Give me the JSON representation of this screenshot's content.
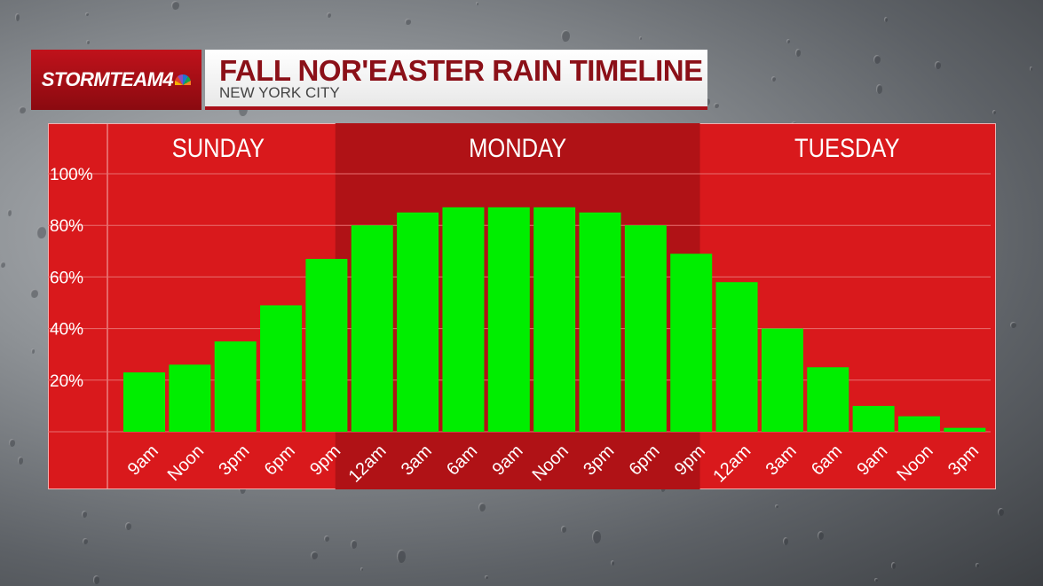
{
  "header": {
    "logo_text": "STORMTEAM4",
    "title": "FALL NOR'EASTER RAIN TIMELINE",
    "subtitle": "NEW YORK CITY"
  },
  "colors": {
    "panel_red": "#d9191c",
    "dark_band": "#b01216",
    "bar_green": "#00ee00",
    "title_red": "#8b1018"
  },
  "chart_data": {
    "type": "bar",
    "title": "FALL NOR'EASTER RAIN TIMELINE",
    "subtitle": "NEW YORK CITY",
    "ylim": [
      0,
      100
    ],
    "ytick_labels": [
      "20%",
      "40%",
      "60%",
      "80%",
      "100%"
    ],
    "yticks": [
      20,
      40,
      60,
      80,
      100
    ],
    "grid": true,
    "day_groups": [
      {
        "label": "SUNDAY",
        "start": 0,
        "count": 5
      },
      {
        "label": "MONDAY",
        "start": 5,
        "count": 8
      },
      {
        "label": "TUESDAY",
        "start": 13,
        "count": 6
      }
    ],
    "categories": [
      "9am",
      "Noon",
      "3pm",
      "6pm",
      "9pm",
      "12am",
      "3am",
      "6am",
      "9am",
      "Noon",
      "3pm",
      "6pm",
      "9pm",
      "12am",
      "3am",
      "6am",
      "9am",
      "Noon",
      "3pm"
    ],
    "values": [
      23,
      26,
      35,
      49,
      67,
      80,
      85,
      87,
      87,
      87,
      85,
      80,
      69,
      58,
      40,
      25,
      10,
      6,
      1.5
    ]
  }
}
